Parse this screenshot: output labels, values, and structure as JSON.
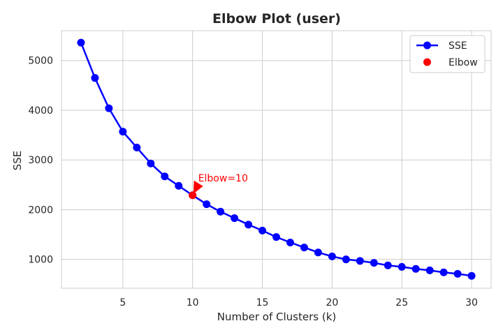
{
  "chart_data": {
    "type": "line",
    "title": "Elbow Plot (user)",
    "xlabel": "Number of Clusters (k)",
    "ylabel": "SSE",
    "xlim": [
      0.6,
      31.4
    ],
    "ylim": [
      420,
      5600
    ],
    "xticks": [
      5,
      10,
      15,
      20,
      25,
      30
    ],
    "yticks": [
      1000,
      2000,
      3000,
      4000,
      5000
    ],
    "grid": true,
    "legend_position": "top-right",
    "series": [
      {
        "name": "SSE",
        "color": "#0000ff",
        "marker": "circle",
        "x": [
          2,
          3,
          4,
          5,
          6,
          7,
          8,
          9,
          10,
          11,
          12,
          13,
          14,
          15,
          16,
          17,
          18,
          19,
          20,
          21,
          22,
          23,
          24,
          25,
          26,
          27,
          28,
          29,
          30
        ],
        "y": [
          5360,
          4650,
          4040,
          3570,
          3250,
          2930,
          2670,
          2480,
          2290,
          2110,
          1960,
          1830,
          1700,
          1580,
          1450,
          1340,
          1240,
          1140,
          1060,
          1000,
          970,
          930,
          880,
          850,
          810,
          780,
          740,
          710,
          670
        ]
      }
    ],
    "highlight": {
      "name": "Elbow",
      "color": "#ff0000",
      "x": 10,
      "y": 2290
    },
    "annotation": {
      "text": "Elbow=10",
      "color": "#ff0000",
      "x": 10,
      "y": 2290
    }
  }
}
